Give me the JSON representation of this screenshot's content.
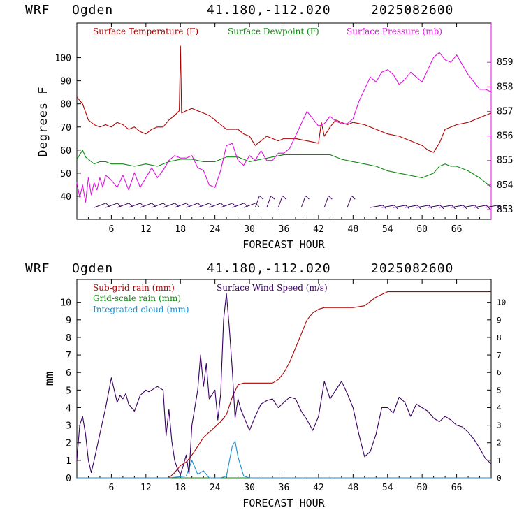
{
  "header_top": {
    "model": "WRF",
    "station": "Ogden",
    "coords": "41.180,-112.020",
    "run": "2025082600"
  },
  "header_bottom": {
    "model": "WRF",
    "station": "Ogden",
    "coords": "41.180,-112.020",
    "run": "2025082600"
  },
  "colors": {
    "temperature": "#b00000",
    "dewpoint": "#118811",
    "pressure": "#e010e0",
    "subgrid_rain": "#b00000",
    "grid_rain": "#118811",
    "cloud": "#1a8fd0",
    "wind": "#3a0060"
  },
  "chart_data": [
    {
      "type": "line",
      "xlabel": "FORECAST HOUR",
      "ylabel": "Degrees F",
      "xlim": [
        0,
        72
      ],
      "ylim": [
        30,
        115
      ],
      "y2lim": [
        852.6,
        860.6
      ],
      "xticks": [
        6,
        12,
        18,
        24,
        30,
        36,
        42,
        48,
        54,
        60,
        66
      ],
      "yticks": [
        40,
        50,
        60,
        70,
        80,
        90,
        100
      ],
      "y2ticks": [
        853,
        854,
        855,
        856,
        857,
        858,
        859
      ],
      "series": [
        {
          "name": "Surface Temperature (F)",
          "axis": "left",
          "x": [
            0,
            1,
            2,
            3,
            4,
            5,
            6,
            7,
            8,
            9,
            10,
            11,
            12,
            13,
            14,
            15,
            16,
            17,
            17.8,
            18,
            18.2,
            19,
            20,
            21,
            22,
            23,
            24,
            25,
            26,
            27,
            28,
            29,
            30,
            31,
            32,
            33,
            34,
            35,
            36,
            38,
            40,
            42,
            42.5,
            43,
            44,
            45,
            46,
            47,
            48,
            50,
            52,
            54,
            56,
            58,
            60,
            61,
            62,
            63,
            64,
            66,
            68,
            70,
            72
          ],
          "y": [
            83,
            80,
            73,
            71,
            70,
            71,
            70,
            72,
            71,
            69,
            70,
            68,
            67,
            69,
            70,
            70,
            73,
            75,
            77,
            105,
            76,
            77,
            78,
            77,
            76,
            75,
            73,
            71,
            69,
            69,
            69,
            67,
            66,
            62,
            64,
            66,
            65,
            64,
            65,
            65,
            64,
            63,
            72,
            66,
            70,
            73,
            72,
            71,
            72,
            71,
            69,
            67,
            66,
            64,
            62,
            60,
            59,
            63,
            69,
            71,
            72,
            74,
            76
          ]
        },
        {
          "name": "Surface Dewpoint (F)",
          "axis": "left",
          "x": [
            0,
            0.5,
            1,
            1.5,
            2,
            3,
            4,
            5,
            6,
            8,
            10,
            12,
            14,
            16,
            18,
            20,
            22,
            24,
            26,
            28,
            30,
            32,
            34,
            36,
            38,
            40,
            42,
            44,
            46,
            48,
            50,
            52,
            54,
            56,
            58,
            60,
            62,
            63,
            64,
            65,
            66,
            68,
            70,
            72
          ],
          "y": [
            56,
            58,
            60,
            57,
            56,
            54,
            55,
            55,
            54,
            54,
            53,
            54,
            53,
            55,
            56,
            56,
            55,
            55,
            57,
            57,
            55,
            56,
            57,
            58,
            58,
            58,
            58,
            58,
            56,
            55,
            54,
            53,
            51,
            50,
            49,
            48,
            50,
            53,
            54,
            53,
            53,
            51,
            48,
            44
          ]
        },
        {
          "name": "Surface Pressure (mb)",
          "axis": "right",
          "x": [
            0,
            0.5,
            1,
            1.5,
            2,
            2.5,
            3,
            3.5,
            4,
            4.5,
            5,
            6,
            7,
            8,
            9,
            10,
            11,
            12,
            13,
            14,
            15,
            16,
            17,
            18,
            19,
            20,
            21,
            22,
            23,
            24,
            25,
            26,
            27,
            28,
            29,
            30,
            31,
            32,
            33,
            34,
            35,
            36,
            37,
            38,
            39,
            40,
            41,
            42,
            43,
            44,
            45,
            46,
            47,
            48,
            49,
            50,
            51,
            52,
            53,
            54,
            55,
            56,
            57,
            58,
            59,
            60,
            61,
            62,
            63,
            64,
            65,
            66,
            67,
            68,
            69,
            70,
            71,
            72
          ],
          "y": [
            854.1,
            853.5,
            854.0,
            853.3,
            854.3,
            853.6,
            854.1,
            853.8,
            854.3,
            853.9,
            854.4,
            854.2,
            853.9,
            854.4,
            853.8,
            854.5,
            853.9,
            854.3,
            854.7,
            854.3,
            854.6,
            855.0,
            855.2,
            855.1,
            855.1,
            855.2,
            854.7,
            854.6,
            854.0,
            853.9,
            854.6,
            855.6,
            855.7,
            855.0,
            854.8,
            855.2,
            855.0,
            855.4,
            855.0,
            855.0,
            855.3,
            855.3,
            855.5,
            856.0,
            856.5,
            857.0,
            856.7,
            856.4,
            856.5,
            856.8,
            856.6,
            856.5,
            856.5,
            856.7,
            857.4,
            857.9,
            858.4,
            858.2,
            858.6,
            858.7,
            858.5,
            858.1,
            858.3,
            858.6,
            858.4,
            858.2,
            858.7,
            859.2,
            859.4,
            859.1,
            859.0,
            859.3,
            858.9,
            858.5,
            858.2,
            857.9,
            857.9,
            857.8
          ]
        }
      ]
    },
    {
      "type": "line",
      "xlabel": "FORECAST HOUR",
      "ylabel": "mm",
      "xlim": [
        0,
        72
      ],
      "ylim": [
        0,
        11.3
      ],
      "y2lim": [
        0,
        11.3
      ],
      "xticks": [
        6,
        12,
        18,
        24,
        30,
        36,
        42,
        48,
        54,
        60,
        66
      ],
      "yticks": [
        0,
        1,
        2,
        3,
        4,
        5,
        6,
        7,
        8,
        9,
        10
      ],
      "y2ticks": [
        0,
        1,
        2,
        3,
        4,
        5,
        6,
        7,
        8,
        9,
        10
      ],
      "series": [
        {
          "name": "Sub-grid rain (mm)",
          "axis": "left",
          "x": [
            0,
            16,
            17,
            18,
            19,
            20,
            21,
            22,
            23,
            24,
            25,
            26,
            27,
            28,
            29,
            30,
            32,
            34,
            35,
            36,
            37,
            38,
            39,
            40,
            41,
            42,
            43,
            44,
            48,
            50,
            52,
            54,
            56,
            60,
            66,
            72
          ],
          "y": [
            0,
            0,
            0.3,
            0.7,
            0.9,
            1.3,
            1.8,
            2.3,
            2.6,
            2.9,
            3.2,
            3.6,
            4.6,
            5.3,
            5.4,
            5.4,
            5.4,
            5.4,
            5.6,
            6.0,
            6.6,
            7.4,
            8.2,
            9.0,
            9.4,
            9.6,
            9.7,
            9.7,
            9.7,
            9.8,
            10.3,
            10.6,
            10.6,
            10.6,
            10.6,
            10.6
          ]
        },
        {
          "name": "Grid-scale rain (mm)",
          "axis": "left",
          "x": [
            0,
            72
          ],
          "y": [
            0,
            0
          ]
        },
        {
          "name": "Integrated cloud (mm)",
          "axis": "left",
          "x": [
            0,
            16,
            19,
            20,
            21,
            22,
            23,
            24,
            25,
            26,
            27,
            27.5,
            28,
            29,
            30,
            72
          ],
          "y": [
            0,
            0,
            0.1,
            1.0,
            0.2,
            0.4,
            0,
            0,
            0,
            0.1,
            1.8,
            2.1,
            1.2,
            0.1,
            0,
            0
          ]
        },
        {
          "name": "Surface Wind Speed (m/s)",
          "axis": "right",
          "x": [
            0,
            0.5,
            1,
            1.5,
            2,
            2.5,
            3,
            4,
            5,
            6,
            6.5,
            7,
            7.5,
            8,
            8.5,
            9,
            10,
            11,
            12,
            12.5,
            13,
            14,
            15,
            15.5,
            16,
            16.5,
            17,
            17.5,
            18,
            18.5,
            19,
            19.5,
            20,
            21,
            21.5,
            22,
            22.5,
            23,
            24,
            24.5,
            25,
            25.5,
            26,
            26.5,
            27,
            27.5,
            28,
            28.5,
            29,
            30,
            31,
            32,
            33,
            34,
            35,
            36,
            37,
            38,
            39,
            40,
            41,
            42,
            43,
            44,
            45,
            46,
            47,
            48,
            49,
            50,
            51,
            52,
            53,
            54,
            55,
            56,
            57,
            58,
            59,
            60,
            61,
            62,
            63,
            64,
            65,
            66,
            67,
            68,
            69,
            70,
            71,
            72
          ],
          "y": [
            1.0,
            3.0,
            3.5,
            2.5,
            1.0,
            0.3,
            1.0,
            2.5,
            4.0,
            5.7,
            5.0,
            4.3,
            4.7,
            4.5,
            4.8,
            4.2,
            3.8,
            4.7,
            5.0,
            4.9,
            5.0,
            5.2,
            5.0,
            2.4,
            3.9,
            2.1,
            1.0,
            0.5,
            0.2,
            0.7,
            1.3,
            0.2,
            3.0,
            5.0,
            7.0,
            5.2,
            6.5,
            4.5,
            5.0,
            3.3,
            4.8,
            9.0,
            10.5,
            8.5,
            6.2,
            3.4,
            4.5,
            3.9,
            3.5,
            2.7,
            3.5,
            4.2,
            4.4,
            4.5,
            4.0,
            4.3,
            4.6,
            4.5,
            3.8,
            3.3,
            2.7,
            3.5,
            5.5,
            4.5,
            5.0,
            5.5,
            4.8,
            4.0,
            2.5,
            1.2,
            1.5,
            2.5,
            4.0,
            4.0,
            3.7,
            4.6,
            4.3,
            3.5,
            4.2,
            4.0,
            3.8,
            3.4,
            3.2,
            3.5,
            3.3,
            3.0,
            2.9,
            2.6,
            2.2,
            1.7,
            1.1,
            0.8
          ]
        }
      ]
    }
  ]
}
